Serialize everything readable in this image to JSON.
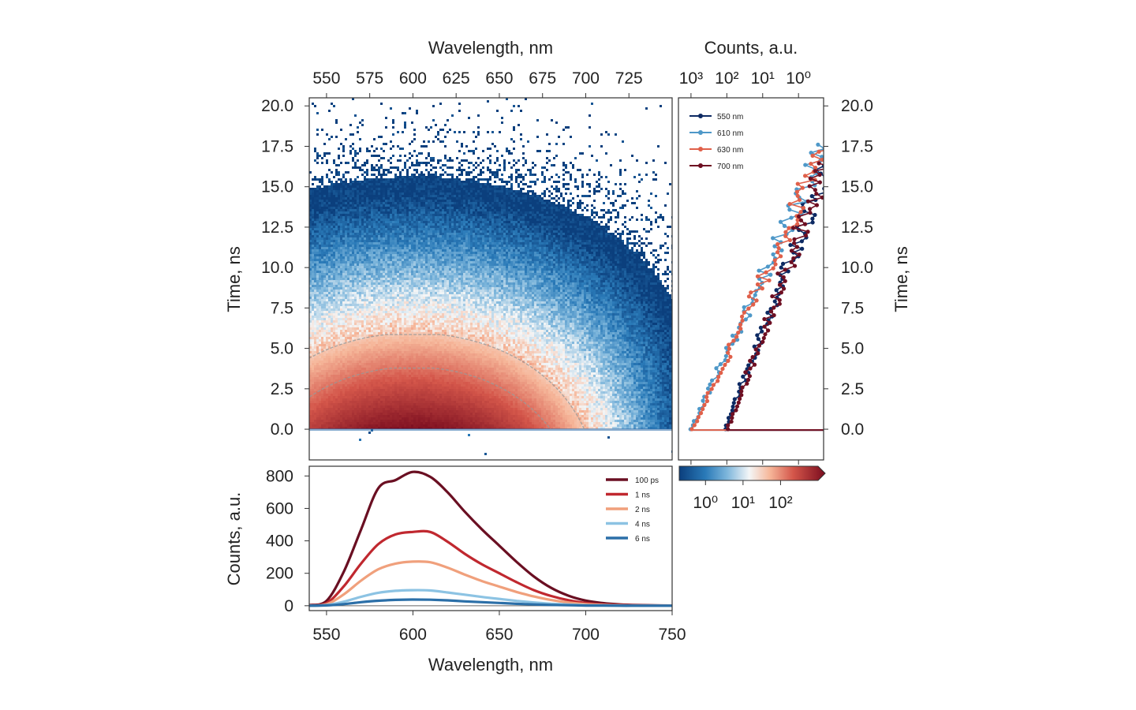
{
  "chart_data": [
    {
      "id": "heatmap",
      "type": "heatmap",
      "title": "",
      "xlabel_top": "Wavelength, nm",
      "ylabel": "Time, ns",
      "xlim": [
        540,
        750
      ],
      "ylim": [
        -1.9,
        20.5
      ],
      "xticks": [
        550,
        575,
        600,
        625,
        650,
        675,
        700,
        725
      ],
      "yticks": [
        0.0,
        2.5,
        5.0,
        7.5,
        10.0,
        12.5,
        15.0,
        17.5,
        20.0
      ],
      "ytick_labels": [
        "0.0",
        "2.5",
        "5.0",
        "7.5",
        "10.0",
        "12.5",
        "15.0",
        "17.5",
        "20.0"
      ],
      "peak_wavelength_nm": 600,
      "contour_levels_counts": [
        100,
        30
      ]
    },
    {
      "id": "decay",
      "type": "scatter",
      "xlabel_top": "Counts, a.u.",
      "ylabel": "Time, ns",
      "xscale": "log-reversed",
      "xlim_log10": [
        3.35,
        -0.7
      ],
      "xticks_log10": [
        3,
        2,
        1,
        0
      ],
      "xtick_labels": [
        "10³",
        "10²",
        "10¹",
        "10⁰"
      ],
      "ylim": [
        -1.9,
        20.5
      ],
      "yticks": [
        0.0,
        2.5,
        5.0,
        7.5,
        10.0,
        12.5,
        15.0,
        17.5,
        20.0
      ],
      "ytick_labels": [
        "0.0",
        "2.5",
        "5.0",
        "7.5",
        "10.0",
        "12.5",
        "15.0",
        "17.5",
        "20.0"
      ],
      "legend_position": "top-left",
      "series": [
        {
          "name": "550 nm",
          "color": "#0d2a63",
          "log10_counts_at_t0": 2.05,
          "decay_log10_per_ns": 0.172
        },
        {
          "name": "610 nm",
          "color": "#4e98c8",
          "log10_counts_at_t0": 3.0,
          "decay_log10_per_ns": 0.213
        },
        {
          "name": "630 nm",
          "color": "#e0604a",
          "log10_counts_at_t0": 2.96,
          "decay_log10_per_ns": 0.213
        },
        {
          "name": "700 nm",
          "color": "#6e0f22",
          "log10_counts_at_t0": 1.98,
          "decay_log10_per_ns": 0.166
        }
      ]
    },
    {
      "id": "spectra",
      "type": "line",
      "xlabel": "Wavelength, nm",
      "ylabel": "Counts, a.u.",
      "xlim": [
        540,
        750
      ],
      "ylim": [
        -30,
        860
      ],
      "xticks": [
        550,
        600,
        650,
        700,
        750
      ],
      "yticks": [
        0,
        200,
        400,
        600,
        800
      ],
      "legend_position": "top-right",
      "x": [
        540,
        550,
        560,
        570,
        580,
        590,
        600,
        610,
        620,
        630,
        640,
        650,
        660,
        670,
        680,
        690,
        700,
        710,
        720,
        730,
        740,
        750
      ],
      "series": [
        {
          "name": "100 ps",
          "color": "#6a0f22",
          "values": [
            4,
            30,
            210,
            470,
            725,
            775,
            825,
            795,
            700,
            580,
            470,
            370,
            270,
            180,
            110,
            62,
            32,
            16,
            8,
            4,
            2,
            1
          ]
        },
        {
          "name": "1 ns",
          "color": "#c0282f",
          "values": [
            2,
            16,
            120,
            260,
            380,
            440,
            455,
            455,
            395,
            320,
            255,
            200,
            145,
            96,
            60,
            34,
            17,
            8,
            4,
            2,
            1,
            0
          ]
        },
        {
          "name": "2 ns",
          "color": "#f0a07c",
          "values": [
            1,
            9,
            70,
            155,
            225,
            260,
            272,
            268,
            235,
            192,
            152,
            118,
            85,
            57,
            35,
            20,
            10,
            5,
            2,
            1,
            0,
            0
          ]
        },
        {
          "name": "4 ns",
          "color": "#8cc3e3",
          "values": [
            0,
            4,
            25,
            55,
            80,
            92,
            96,
            94,
            82,
            68,
            54,
            42,
            30,
            20,
            12,
            7,
            3,
            2,
            1,
            0,
            0,
            0
          ]
        },
        {
          "name": "6 ns",
          "color": "#2b6fa8",
          "values": [
            0,
            2,
            10,
            22,
            31,
            36,
            38,
            37,
            33,
            27,
            22,
            17,
            12,
            8,
            5,
            3,
            1,
            1,
            0,
            0,
            0,
            0
          ]
        }
      ]
    },
    {
      "id": "colorbar",
      "type": "heatmap",
      "scale": "log",
      "tick_labels": [
        "10⁰",
        "10¹",
        "10²"
      ],
      "ticks_log10": [
        0,
        1,
        2
      ],
      "range_log10": [
        -0.7,
        3.0
      ],
      "extend": "max"
    }
  ],
  "colors": {
    "cmap_low": "#0b3f7d",
    "cmap_mid": "#f7f7f7",
    "cmap_high": "#7a0c1e",
    "contour": "#9a9a9a"
  }
}
